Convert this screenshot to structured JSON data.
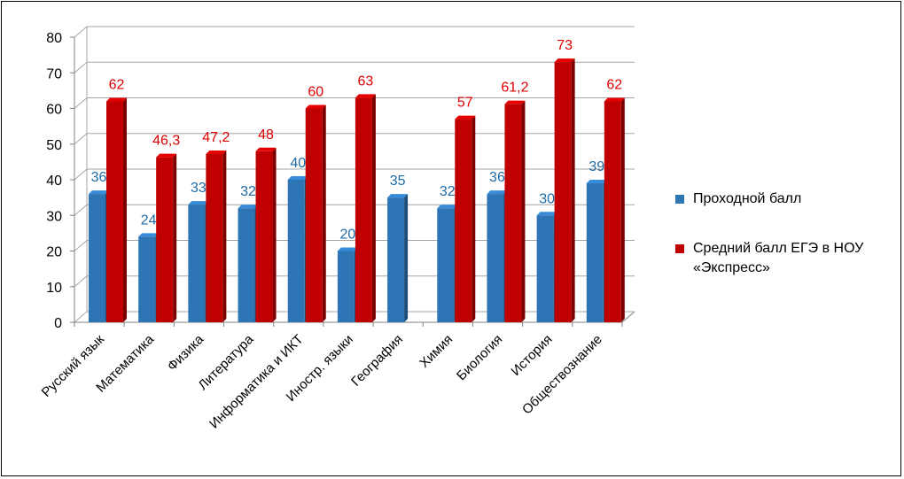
{
  "chart_data": {
    "type": "bar",
    "categories": [
      "Русский язык",
      "Математика",
      "Физика",
      "Литература",
      "Информатика и ИКТ",
      "Иностр. языки",
      "География",
      "Химия",
      "Биология",
      "История",
      "Обществознание"
    ],
    "series": [
      {
        "name": "Проходной балл",
        "color": "#2E75B6",
        "values": [
          36,
          24,
          33,
          32,
          40,
          20,
          35,
          32,
          36,
          30,
          39
        ],
        "labels": [
          "36",
          "24",
          "33",
          "32",
          "40",
          "20",
          "35",
          "32",
          "36",
          "30",
          "39"
        ],
        "label_color": "#1F6BA5"
      },
      {
        "name": "Средний балл ЕГЭ в НОУ «Экспресс»",
        "color": "#C00000",
        "values": [
          62,
          46.3,
          47.2,
          48,
          60,
          63,
          null,
          57,
          61.2,
          73,
          62
        ],
        "labels": [
          "62",
          "46,3",
          "47,2",
          "48",
          "60",
          "63",
          "",
          "57",
          "61,2",
          "73",
          "62"
        ],
        "label_color": "#E00000"
      }
    ],
    "ylim": [
      0,
      80
    ],
    "yticks": [
      "0",
      "10",
      "20",
      "30",
      "40",
      "50",
      "60",
      "70",
      "80"
    ],
    "grid": true,
    "legend": "right",
    "style": "3d-clustered-column"
  }
}
